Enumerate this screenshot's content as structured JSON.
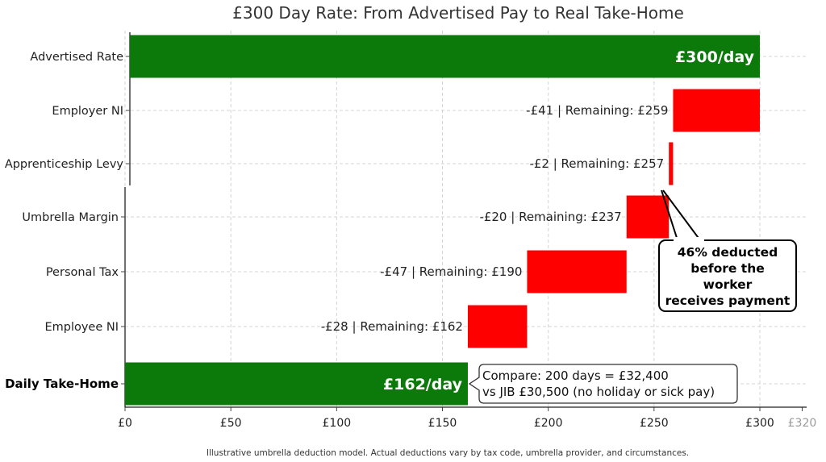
{
  "chart_data": {
    "type": "bar",
    "subtype": "waterfall",
    "orientation": "horizontal",
    "title": "£300 Day Rate: From Advertised Pay to Real Take-Home",
    "categories": [
      "Advertised Rate",
      "Employer NI",
      "Apprenticeship Levy",
      "Umbrella Margin",
      "Personal Tax",
      "Employee NI",
      "Daily Take-Home"
    ],
    "bars": [
      {
        "category": "Advertised Rate",
        "start": 0,
        "end": 300,
        "kind": "total",
        "label": "£300/day",
        "label_position": "inside"
      },
      {
        "category": "Employer NI",
        "start": 259,
        "end": 300,
        "kind": "deduction",
        "label": "-£41 | Remaining: £259",
        "label_position": "left"
      },
      {
        "category": "Apprenticeship Levy",
        "start": 257,
        "end": 259,
        "kind": "deduction",
        "label": "-£2 | Remaining: £257",
        "label_position": "left"
      },
      {
        "category": "Umbrella Margin",
        "start": 237,
        "end": 257,
        "kind": "deduction",
        "label": "-£20 | Remaining: £237",
        "label_position": "left"
      },
      {
        "category": "Personal Tax",
        "start": 190,
        "end": 237,
        "kind": "deduction",
        "label": "-£47 | Remaining: £190",
        "label_position": "left"
      },
      {
        "category": "Employee NI",
        "start": 162,
        "end": 190,
        "kind": "deduction",
        "label": "-£28 | Remaining: £162",
        "label_position": "left"
      },
      {
        "category": "Daily Take-Home",
        "start": 0,
        "end": 162,
        "kind": "total",
        "label": "£162/day",
        "label_position": "inside"
      }
    ],
    "bold_category": "Daily Take-Home",
    "xlim": [
      0,
      320
    ],
    "x_ticks": [
      {
        "value": 0,
        "label": "£0"
      },
      {
        "value": 50,
        "label": "£50"
      },
      {
        "value": 100,
        "label": "£100"
      },
      {
        "value": 150,
        "label": "£150"
      },
      {
        "value": 200,
        "label": "£200"
      },
      {
        "value": 250,
        "label": "£250"
      },
      {
        "value": 300,
        "label": "£300"
      },
      {
        "value": 320,
        "label": "£320",
        "faded": true
      }
    ],
    "grid": true,
    "colors": {
      "total": "#0b7a0b",
      "deduction": "#ff0000",
      "grid": "#d4d4d4",
      "text": "#222222"
    },
    "annotations": {
      "callout": {
        "lines": [
          "46% deducted",
          "before the",
          "worker",
          "receives payment"
        ],
        "points_to": "Apprenticeship Levy"
      },
      "compare": {
        "lines": [
          "Compare: 200 days = £32,400",
          "vs  JIB £30,500 (no holiday or sick pay)"
        ],
        "beside": "Daily Take-Home"
      }
    },
    "footnote": "Illustrative umbrella deduction model. Actual deductions vary by tax code, umbrella provider, and circumstances."
  }
}
